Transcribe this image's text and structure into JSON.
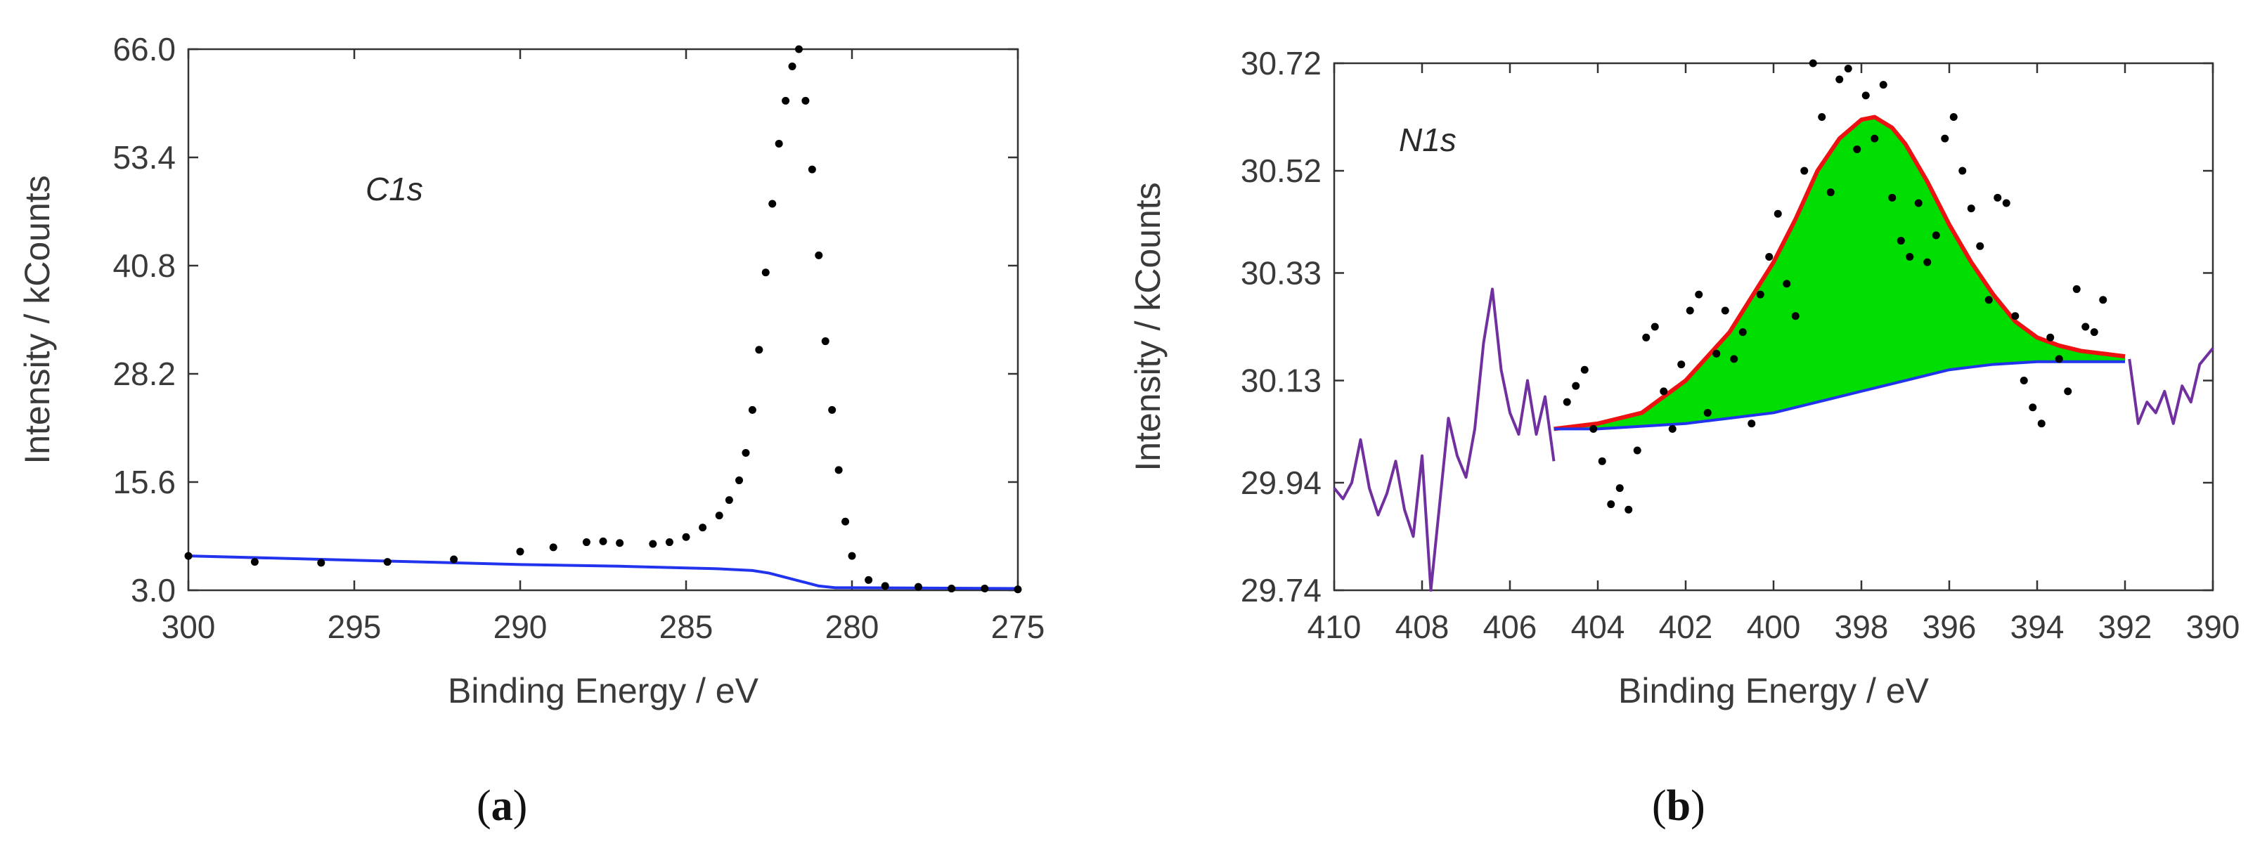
{
  "chart_data": [
    {
      "type": "scatter",
      "panel": "a",
      "caption_open": "(",
      "caption_letter": "a",
      "caption_close": ")",
      "annotation": "C1s",
      "xlabel": "Binding Energy / eV",
      "ylabel": "Intensity / kCounts",
      "xlim": [
        300,
        275
      ],
      "ylim": [
        3.0,
        66.0
      ],
      "x_ticks": [
        "300",
        "295",
        "290",
        "285",
        "280",
        "275"
      ],
      "x_tick_values": [
        300,
        295,
        290,
        285,
        280,
        275
      ],
      "y_ticks": [
        "3.0",
        "15.6",
        "28.2",
        "40.8",
        "53.4",
        "66.0"
      ],
      "y_tick_values": [
        3.0,
        15.6,
        28.2,
        40.8,
        53.4,
        66.0
      ],
      "series": [
        {
          "name": "data",
          "style": "points",
          "color": "#000000",
          "x": [
            300,
            298,
            296,
            294,
            292,
            290,
            289,
            288,
            287.5,
            287,
            286,
            285.5,
            285,
            284.5,
            284,
            283.7,
            283.4,
            283.2,
            283,
            282.8,
            282.6,
            282.4,
            282.2,
            282.0,
            281.8,
            281.6,
            281.4,
            281.2,
            281.0,
            280.8,
            280.6,
            280.4,
            280.2,
            280.0,
            279.5,
            279,
            278,
            277,
            276,
            275
          ],
          "y": [
            7.0,
            6.3,
            6.2,
            6.3,
            6.6,
            7.5,
            8.0,
            8.6,
            8.7,
            8.5,
            8.4,
            8.6,
            9.2,
            10.3,
            11.7,
            13.5,
            15.8,
            19.0,
            24.0,
            31.0,
            40.0,
            48.0,
            55.0,
            60.0,
            64.0,
            66.0,
            60.0,
            52.0,
            42.0,
            32.0,
            24.0,
            17.0,
            11.0,
            7.0,
            4.2,
            3.5,
            3.4,
            3.2,
            3.2,
            3.1
          ]
        },
        {
          "name": "background",
          "style": "line",
          "color": "#2233ee",
          "x": [
            300,
            295,
            290,
            287,
            285,
            284,
            283,
            282.5,
            282,
            281.5,
            281,
            280.5,
            280,
            275
          ],
          "y": [
            7.0,
            6.5,
            6.0,
            5.8,
            5.6,
            5.5,
            5.3,
            5.0,
            4.5,
            4.0,
            3.5,
            3.3,
            3.3,
            3.2
          ]
        }
      ]
    },
    {
      "type": "scatter",
      "panel": "b",
      "caption_open": "(",
      "caption_letter": "b",
      "caption_close": ")",
      "annotation": "N1s",
      "xlabel": "Binding Energy / eV",
      "ylabel": "Intensity / kCounts",
      "xlim": [
        410,
        390
      ],
      "ylim": [
        29.74,
        30.72
      ],
      "x_ticks": [
        "410",
        "408",
        "406",
        "404",
        "402",
        "400",
        "398",
        "396",
        "394",
        "392",
        "390"
      ],
      "x_tick_values": [
        410,
        408,
        406,
        404,
        402,
        400,
        398,
        396,
        394,
        392,
        390
      ],
      "y_ticks": [
        "29.74",
        "29.94",
        "30.13",
        "30.33",
        "30.52",
        "30.72"
      ],
      "y_tick_values": [
        29.74,
        29.94,
        30.13,
        30.33,
        30.52,
        30.72
      ],
      "series": [
        {
          "name": "data",
          "style": "points",
          "color": "#000000",
          "x": [
            404.7,
            404.5,
            404.3,
            404.1,
            403.9,
            403.7,
            403.5,
            403.3,
            403.1,
            402.9,
            402.7,
            402.5,
            402.3,
            402.1,
            401.9,
            401.7,
            401.5,
            401.3,
            401.1,
            400.9,
            400.7,
            400.5,
            400.3,
            400.1,
            399.9,
            399.7,
            399.5,
            399.3,
            399.1,
            398.9,
            398.7,
            398.5,
            398.3,
            398.1,
            397.9,
            397.7,
            397.5,
            397.3,
            397.1,
            396.9,
            396.7,
            396.5,
            396.3,
            396.1,
            395.9,
            395.7,
            395.5,
            395.3,
            395.1,
            394.9,
            394.7,
            394.5,
            394.3,
            394.1,
            393.9,
            393.7,
            393.5,
            393.3,
            393.1,
            392.9,
            392.7,
            392.5
          ],
          "y": [
            30.09,
            30.12,
            30.15,
            30.04,
            29.98,
            29.9,
            29.93,
            29.89,
            30.0,
            30.21,
            30.23,
            30.11,
            30.04,
            30.16,
            30.26,
            30.29,
            30.07,
            30.18,
            30.26,
            30.17,
            30.22,
            30.05,
            30.29,
            30.36,
            30.44,
            30.31,
            30.25,
            30.52,
            30.72,
            30.62,
            30.48,
            30.69,
            30.71,
            30.56,
            30.66,
            30.58,
            30.68,
            30.47,
            30.39,
            30.36,
            30.46,
            30.35,
            30.4,
            30.58,
            30.62,
            30.52,
            30.45,
            30.38,
            30.28,
            30.47,
            30.46,
            30.25,
            30.13,
            30.08,
            30.05,
            30.21,
            30.17,
            30.11,
            30.3,
            30.23,
            30.22,
            30.28
          ]
        },
        {
          "name": "envelope",
          "style": "line",
          "color": "#ee1111",
          "x": [
            405,
            404,
            403,
            402,
            401,
            400,
            399.5,
            399,
            398.5,
            398,
            397.7,
            397.3,
            397,
            396.5,
            396,
            395.5,
            395,
            394.5,
            394,
            393.5,
            393,
            392.5,
            392
          ],
          "y": [
            30.04,
            30.05,
            30.07,
            30.13,
            30.22,
            30.35,
            30.43,
            30.52,
            30.58,
            30.615,
            30.62,
            30.6,
            30.57,
            30.5,
            30.42,
            30.35,
            30.29,
            30.24,
            30.21,
            30.195,
            30.185,
            30.18,
            30.175
          ]
        },
        {
          "name": "background",
          "style": "line",
          "color": "#2233ee",
          "x": [
            405,
            404,
            403,
            402,
            401,
            400,
            399,
            398,
            397,
            396,
            395,
            394,
            393,
            392
          ],
          "y": [
            30.04,
            30.04,
            30.045,
            30.05,
            30.06,
            30.07,
            30.09,
            30.11,
            30.13,
            30.15,
            30.16,
            30.165,
            30.165,
            30.165
          ]
        },
        {
          "name": "spectrum-left",
          "style": "line",
          "color": "#7030a0",
          "x": [
            410,
            409.8,
            409.6,
            409.4,
            409.2,
            409.0,
            408.8,
            408.6,
            408.4,
            408.2,
            408.0,
            407.8,
            407.6,
            407.4,
            407.2,
            407.0,
            406.8,
            406.6,
            406.4,
            406.2,
            406.0,
            405.8,
            405.6,
            405.4,
            405.2,
            405.0
          ],
          "y": [
            29.93,
            29.91,
            29.94,
            30.02,
            29.93,
            29.88,
            29.92,
            29.98,
            29.89,
            29.84,
            29.99,
            29.74,
            29.9,
            30.06,
            29.99,
            29.95,
            30.04,
            30.2,
            30.3,
            30.15,
            30.07,
            30.03,
            30.13,
            30.03,
            30.1,
            29.98
          ]
        },
        {
          "name": "spectrum-right",
          "style": "line",
          "color": "#7030a0",
          "x": [
            391.9,
            391.7,
            391.5,
            391.3,
            391.1,
            390.9,
            390.7,
            390.5,
            390.3,
            390.0
          ],
          "y": [
            30.17,
            30.05,
            30.09,
            30.07,
            30.11,
            30.05,
            30.12,
            30.09,
            30.16,
            30.19
          ]
        }
      ],
      "fill": {
        "name": "peak-area",
        "color": "#00dd00",
        "between": [
          "envelope",
          "background"
        ]
      }
    }
  ]
}
